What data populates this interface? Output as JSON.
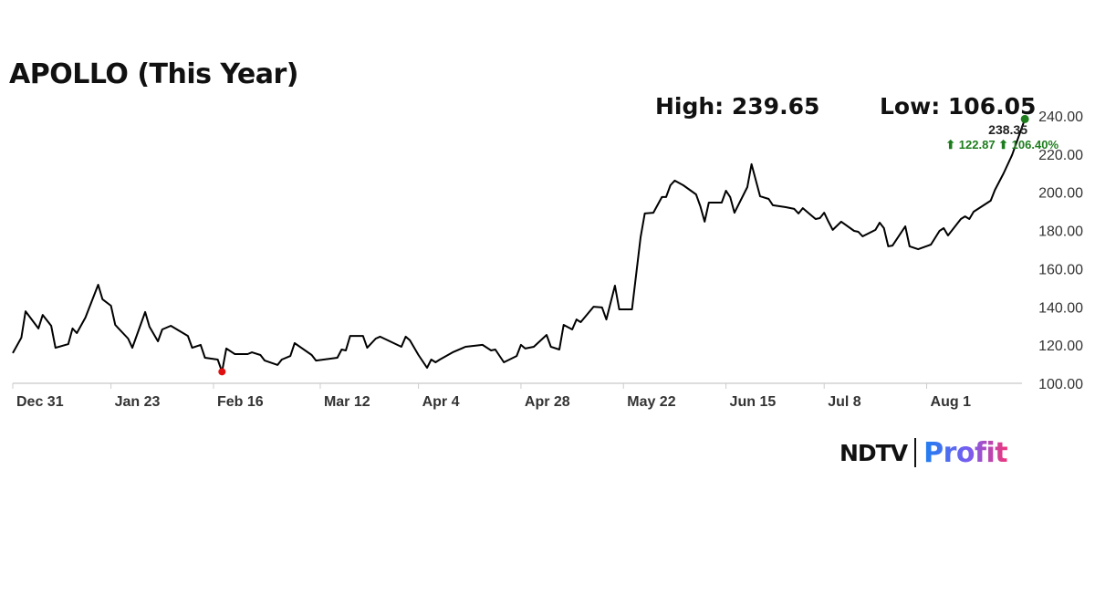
{
  "chart_data": {
    "type": "line",
    "title": "APOLLO (This Year)",
    "high_label": "High: 239.65",
    "low_label": "Low: 106.05",
    "last_value_label": "238.35",
    "change_label": "⬆ 122.87 ⬆ 106.40%",
    "ylim": [
      100,
      240
    ],
    "yticks": [
      "100.00",
      "120.00",
      "140.00",
      "160.00",
      "180.00",
      "200.00",
      "220.00",
      "240.00"
    ],
    "xticks": [
      {
        "date": "2023-12-31",
        "label": "Dec 31"
      },
      {
        "date": "2024-01-23",
        "label": "Jan 23"
      },
      {
        "date": "2024-02-16",
        "label": "Feb 16"
      },
      {
        "date": "2024-03-12",
        "label": "Mar 12"
      },
      {
        "date": "2024-04-04",
        "label": "Apr 4"
      },
      {
        "date": "2024-04-28",
        "label": "Apr 28"
      },
      {
        "date": "2024-05-22",
        "label": "May 22"
      },
      {
        "date": "2024-06-15",
        "label": "Jun 15"
      },
      {
        "date": "2024-07-08",
        "label": "Jul 8"
      },
      {
        "date": "2024-08-01",
        "label": "Aug 1"
      }
    ],
    "grid": false,
    "y_axis_position": "right",
    "line_color": "#000000",
    "low_marker_color": "#e01010",
    "last_marker_color": "#1d7d1d",
    "low_point": {
      "date": "2024-02-18",
      "value": 106.05
    },
    "x": [
      "2023-12-31",
      "2024-01-02",
      "2024-01-03",
      "2024-01-06",
      "2024-01-07",
      "2024-01-09",
      "2024-01-10",
      "2024-01-13",
      "2024-01-14",
      "2024-01-15",
      "2024-01-17",
      "2024-01-20",
      "2024-01-21",
      "2024-01-23",
      "2024-01-24",
      "2024-01-27",
      "2024-01-28",
      "2024-01-31",
      "2024-02-01",
      "2024-02-03",
      "2024-02-04",
      "2024-02-06",
      "2024-02-10",
      "2024-02-11",
      "2024-02-13",
      "2024-02-14",
      "2024-02-17",
      "2024-02-18",
      "2024-02-19",
      "2024-02-21",
      "2024-02-24",
      "2024-02-25",
      "2024-02-27",
      "2024-02-28",
      "2024-03-02",
      "2024-03-03",
      "2024-03-05",
      "2024-03-06",
      "2024-03-10",
      "2024-03-11",
      "2024-03-16",
      "2024-03-17",
      "2024-03-18",
      "2024-03-19",
      "2024-03-22",
      "2024-03-23",
      "2024-03-25",
      "2024-03-26",
      "2024-03-31",
      "2024-04-01",
      "2024-04-02",
      "2024-04-04",
      "2024-04-06",
      "2024-04-07",
      "2024-04-08",
      "2024-04-09",
      "2024-04-12",
      "2024-04-15",
      "2024-04-19",
      "2024-04-21",
      "2024-04-22",
      "2024-04-24",
      "2024-04-27",
      "2024-04-28",
      "2024-04-29",
      "2024-05-01",
      "2024-05-04",
      "2024-05-05",
      "2024-05-07",
      "2024-05-08",
      "2024-05-10",
      "2024-05-11",
      "2024-05-12",
      "2024-05-15",
      "2024-05-17",
      "2024-05-18",
      "2024-05-20",
      "2024-05-21",
      "2024-05-24",
      "2024-05-26",
      "2024-05-27",
      "2024-05-29",
      "2024-05-31",
      "2024-06-01",
      "2024-06-02",
      "2024-06-03",
      "2024-06-05",
      "2024-06-08",
      "2024-06-09",
      "2024-06-10",
      "2024-06-11",
      "2024-06-14",
      "2024-06-15",
      "2024-06-16",
      "2024-06-17",
      "2024-06-20",
      "2024-06-21",
      "2024-06-23",
      "2024-06-25",
      "2024-06-26",
      "2024-06-29",
      "2024-07-01",
      "2024-07-02",
      "2024-07-03",
      "2024-07-06",
      "2024-07-07",
      "2024-07-08",
      "2024-07-09",
      "2024-07-10",
      "2024-07-12",
      "2024-07-15",
      "2024-07-16",
      "2024-07-17",
      "2024-07-20",
      "2024-07-21",
      "2024-07-22",
      "2024-07-23",
      "2024-07-24",
      "2024-07-27",
      "2024-07-28",
      "2024-07-30",
      "2024-08-02",
      "2024-08-04",
      "2024-08-05",
      "2024-08-06",
      "2024-08-09",
      "2024-08-10",
      "2024-08-11",
      "2024-08-12",
      "2024-08-16",
      "2024-08-17",
      "2024-08-19",
      "2024-08-21",
      "2024-08-24"
    ],
    "values": [
      115.8,
      123.9,
      137.7,
      128.7,
      135.8,
      130.1,
      118.6,
      120.5,
      128.7,
      126.3,
      134.4,
      151.6,
      144.0,
      140.6,
      130.6,
      123.4,
      118.6,
      137.3,
      129.6,
      122.0,
      128.2,
      130.1,
      124.8,
      118.6,
      120.1,
      113.4,
      112.4,
      106.05,
      118.2,
      115.3,
      115.3,
      116.2,
      114.8,
      111.9,
      109.6,
      112.4,
      114.3,
      121.0,
      114.8,
      111.9,
      113.4,
      117.7,
      117.2,
      124.8,
      124.8,
      118.6,
      123.4,
      124.4,
      119.1,
      124.4,
      122.5,
      114.8,
      108.1,
      112.4,
      111.0,
      112.4,
      116.2,
      119.1,
      120.1,
      117.2,
      117.7,
      111.0,
      114.3,
      120.1,
      118.2,
      119.1,
      125.3,
      119.1,
      117.7,
      130.6,
      128.2,
      133.4,
      132.0,
      140.1,
      139.7,
      133.4,
      151.1,
      138.7,
      138.7,
      176.4,
      188.9,
      189.3,
      197.5,
      197.5,
      203.7,
      206.1,
      203.7,
      198.9,
      192.7,
      184.6,
      194.6,
      194.6,
      200.8,
      197.5,
      189.3,
      202.7,
      214.7,
      197.9,
      196.5,
      193.2,
      192.2,
      191.3,
      188.9,
      191.7,
      186.0,
      186.5,
      189.3,
      184.6,
      180.3,
      184.6,
      179.8,
      179.3,
      176.9,
      180.3,
      184.1,
      181.2,
      171.7,
      172.1,
      182.2,
      171.7,
      170.2,
      172.6,
      179.8,
      181.2,
      177.4,
      186.0,
      187.4,
      186.0,
      189.8,
      195.6,
      201.3,
      209.9,
      219.5,
      238.35
    ]
  },
  "branding": {
    "ndtv": "NDTV",
    "profit": "Profit"
  }
}
